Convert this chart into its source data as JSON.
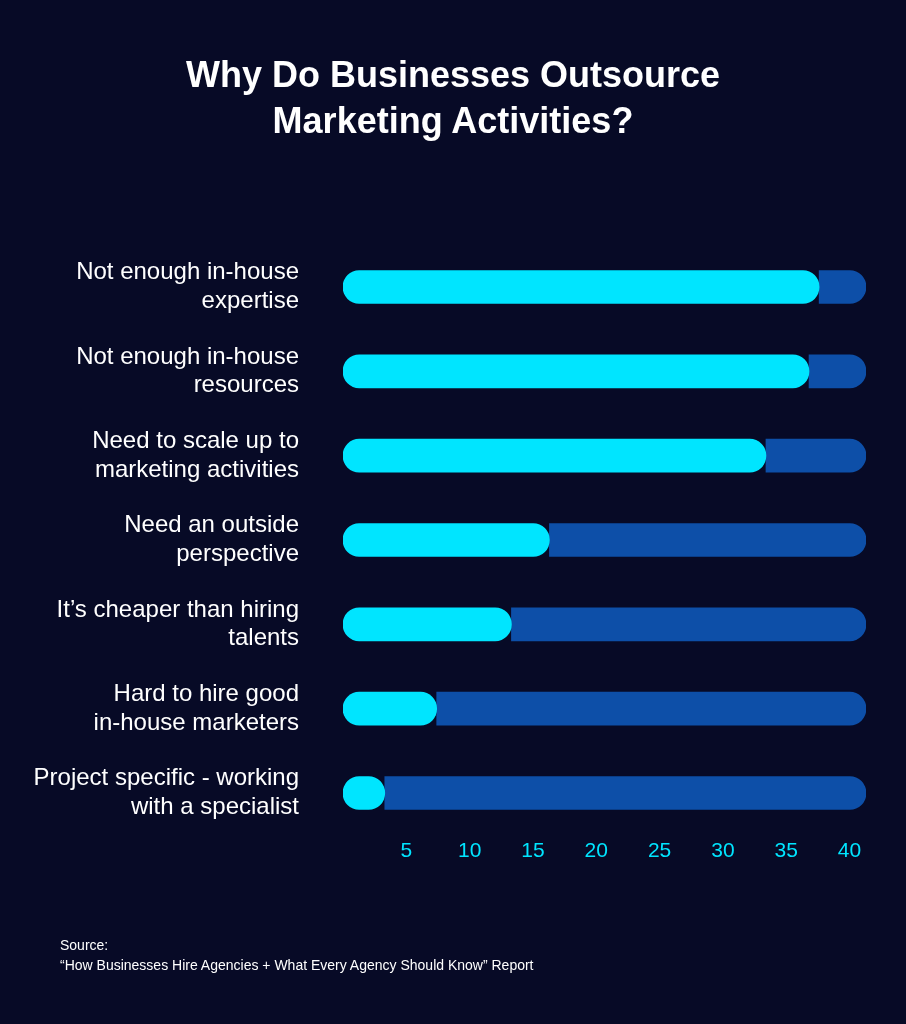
{
  "chart_data": {
    "type": "bar",
    "orientation": "horizontal",
    "stacked": true,
    "title": "Why Do Businesses Outsource Marketing Activities?",
    "categories": [
      "Not enough in-house expertise",
      "Not enough in-house resources",
      "Need to scale up to marketing activities",
      "Need an outside perspective",
      "It’s cheaper than hiring talents",
      "Hard to hire good in-house marketers",
      "Project specific - working with a specialist"
    ],
    "series": [
      {
        "color": "#00e5ff",
        "values": [
          37.6,
          36.8,
          33.4,
          16.3,
          13.3,
          7.4,
          3.3
        ]
      },
      {
        "color": "#0d4fa8",
        "values": [
          3.7,
          4.5,
          7.9,
          25.0,
          28.0,
          33.9,
          38.0
        ]
      }
    ],
    "xlim": [
      0,
      41.3
    ],
    "xticks": [
      5,
      10,
      15,
      20,
      25,
      30,
      35,
      40
    ],
    "grid": false,
    "legend": false,
    "annotations": [
      "Source:\n“How Businesses Hire Agencies + What Every Agency Should Know” Report"
    ]
  }
}
